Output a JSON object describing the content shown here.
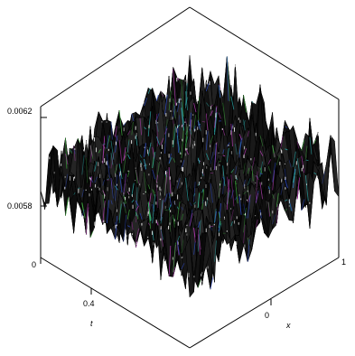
{
  "chart_data": {
    "type": "surface",
    "title": "",
    "xlabel": "t",
    "ylabel": "x",
    "zlabel": "",
    "x_ticks": [
      "0",
      "0.4"
    ],
    "y_ticks": [
      "0",
      "1"
    ],
    "z_ticks": [
      "0.0062",
      "0.0058"
    ],
    "z_range": [
      0.0057,
      0.0063
    ],
    "grid": false,
    "legend": "none",
    "colors": {
      "surface_base": "#0a0a0a",
      "highlight_magenta": "#c040c0",
      "highlight_cyan": "#30c0c0",
      "highlight_green": "#40b040",
      "highlight_blue": "#3050d0",
      "frame": "#000000"
    }
  }
}
